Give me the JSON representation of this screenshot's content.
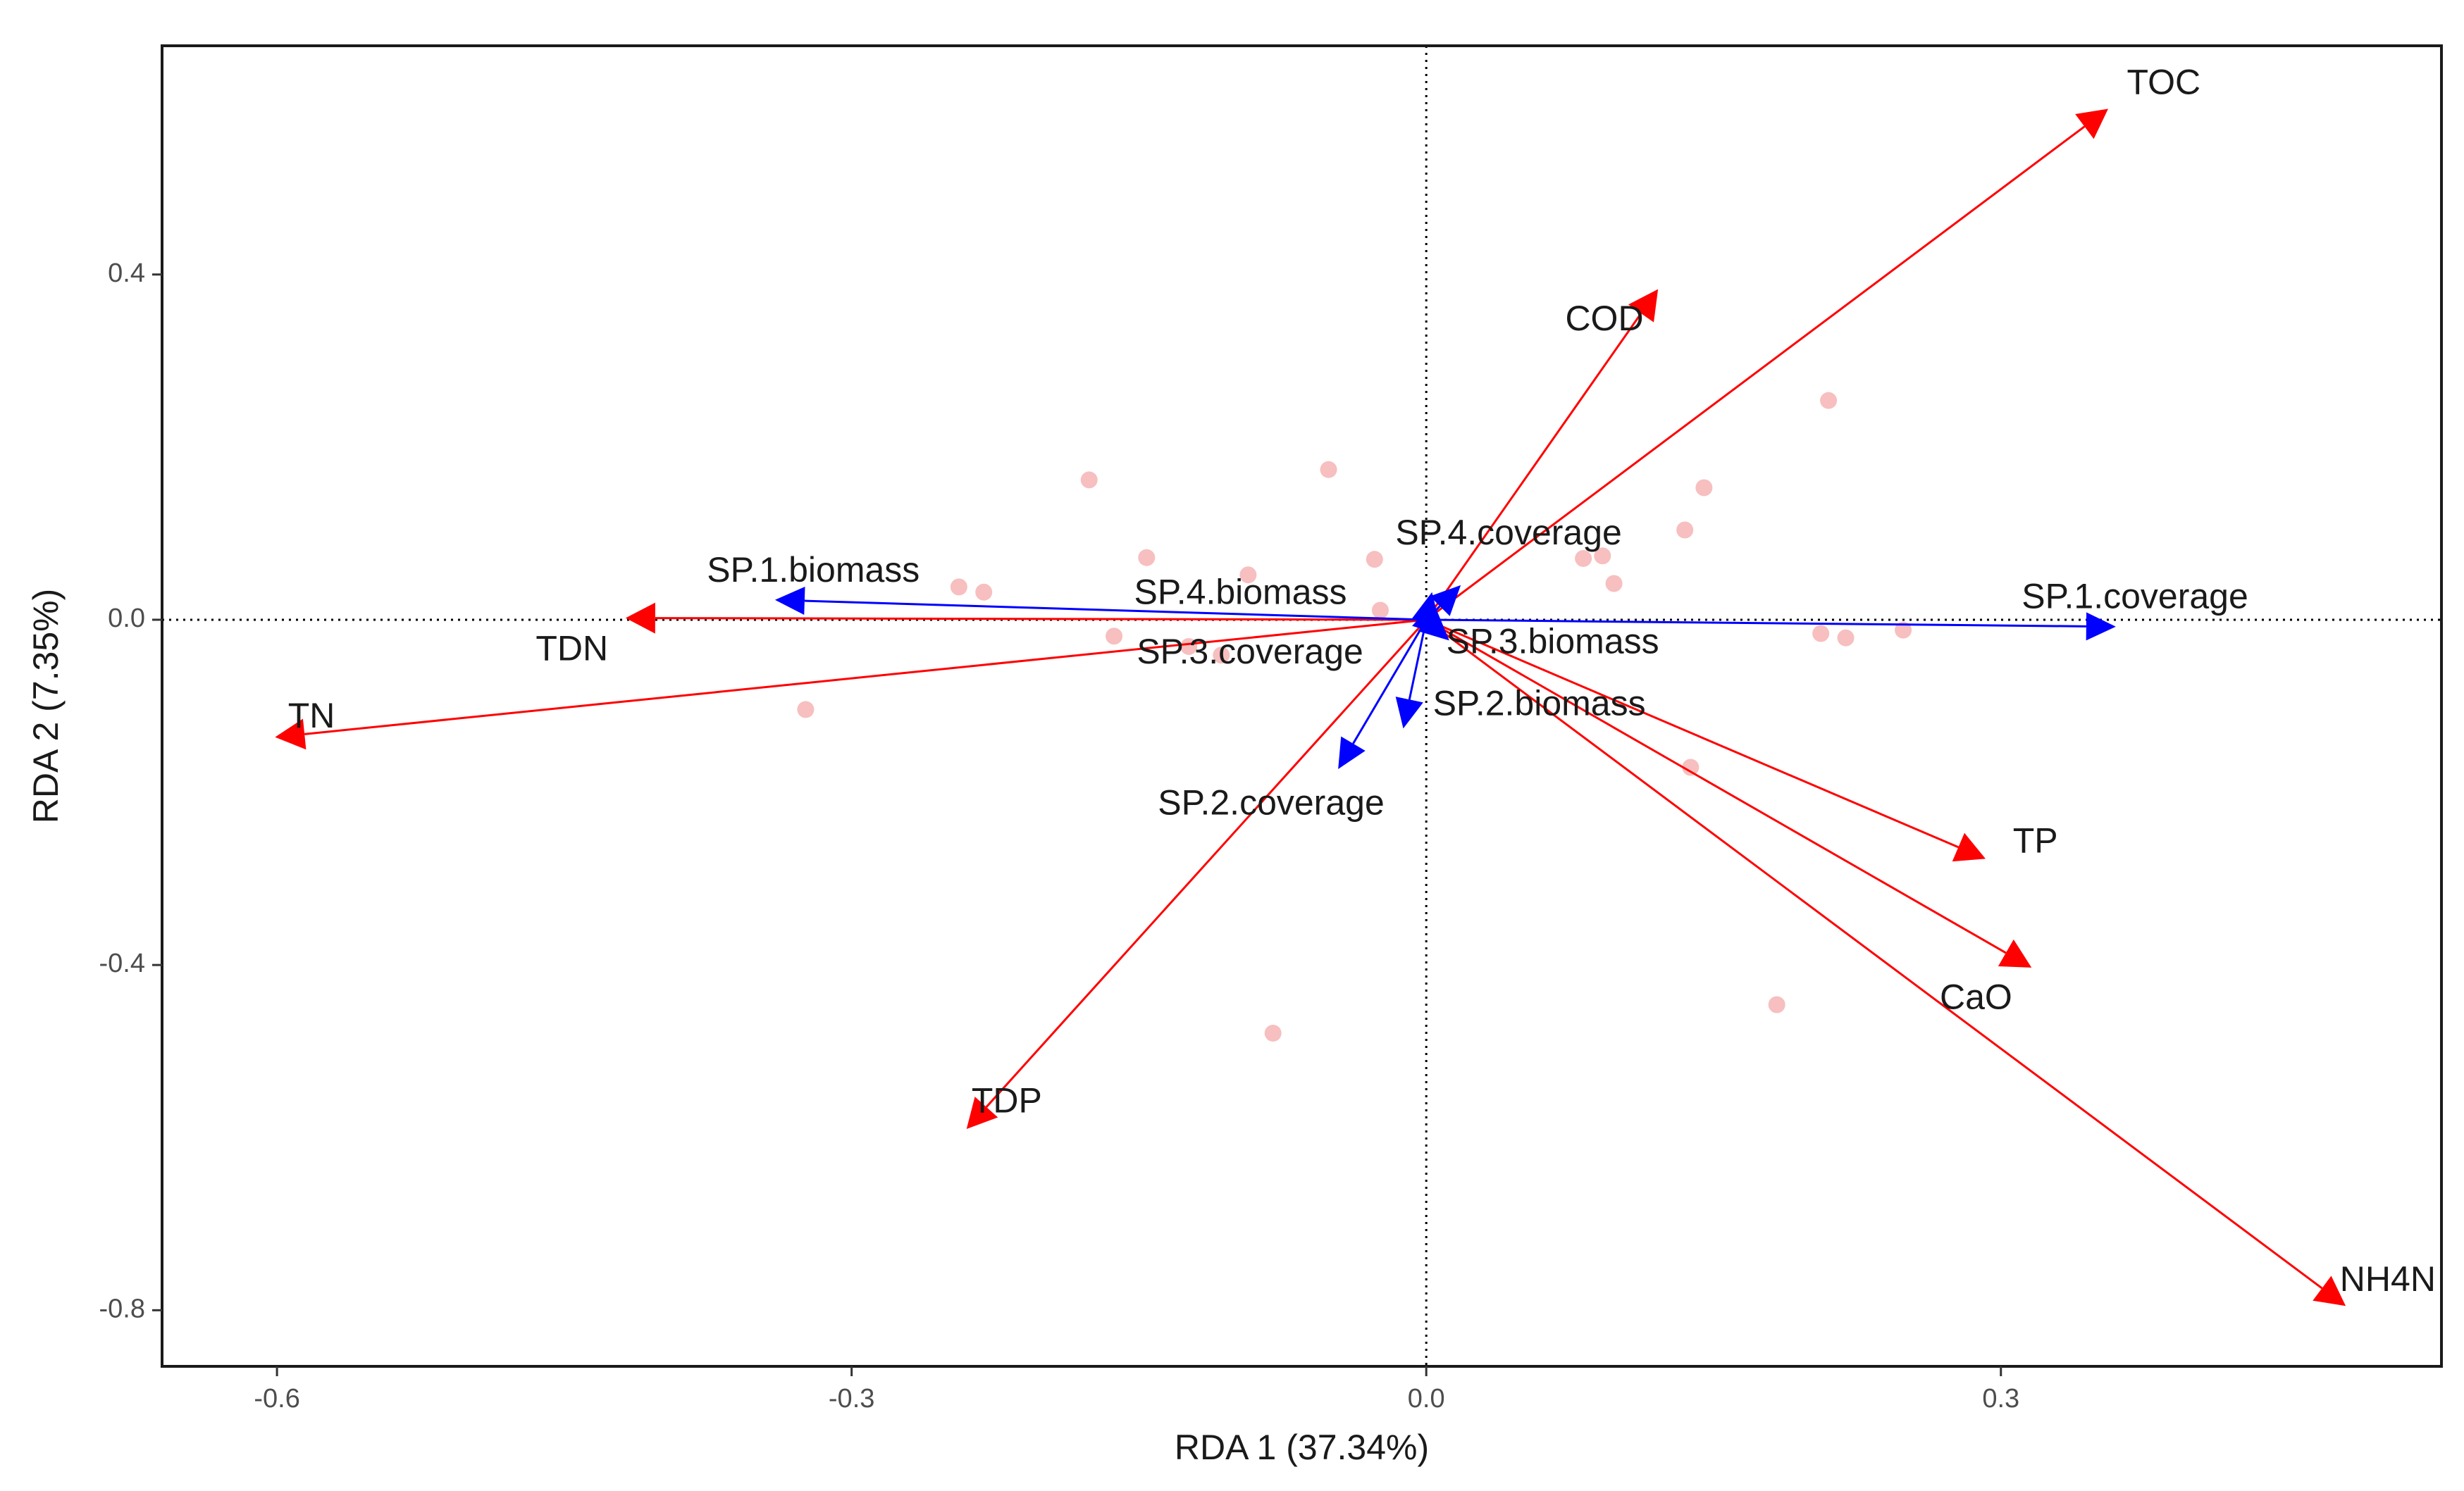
{
  "chart_data": {
    "type": "scatter",
    "subtype": "rda-biplot",
    "title": "",
    "xlabel": "RDA 1 (37.34%)",
    "ylabel": "RDA 2 (7.35%)",
    "xlim": [
      -0.66,
      0.53
    ],
    "ylim": [
      -0.865,
      0.665
    ],
    "x_ticks": [
      -0.6,
      -0.3,
      0.0,
      0.3
    ],
    "x_tick_labels": [
      "-0.6",
      "-0.3",
      "0.0",
      "0.3"
    ],
    "y_ticks": [
      -0.8,
      -0.4,
      0.0,
      0.4
    ],
    "y_tick_labels": [
      "-0.8",
      "-0.4",
      "0.0",
      "0.4"
    ],
    "grid": false,
    "reference_lines": {
      "x": 0,
      "y": 0,
      "style": "dotted"
    },
    "colors": {
      "environment": "#ff0000",
      "species": "#0000ff",
      "sites": "#f4a9a9",
      "axis": "#000000"
    },
    "sites": [
      {
        "x": -0.176,
        "y": 0.162
      },
      {
        "x": -0.051,
        "y": 0.174
      },
      {
        "x": -0.146,
        "y": 0.072
      },
      {
        "x": -0.093,
        "y": 0.052
      },
      {
        "x": -0.027,
        "y": 0.07
      },
      {
        "x": -0.244,
        "y": 0.038
      },
      {
        "x": -0.231,
        "y": 0.032
      },
      {
        "x": -0.163,
        "y": -0.019
      },
      {
        "x": -0.124,
        "y": -0.031
      },
      {
        "x": -0.107,
        "y": -0.041
      },
      {
        "x": -0.024,
        "y": 0.011
      },
      {
        "x": -0.324,
        "y": -0.104
      },
      {
        "x": 0.082,
        "y": 0.071
      },
      {
        "x": 0.092,
        "y": 0.074
      },
      {
        "x": 0.098,
        "y": 0.042
      },
      {
        "x": 0.135,
        "y": 0.104
      },
      {
        "x": 0.145,
        "y": 0.153
      },
      {
        "x": 0.21,
        "y": 0.254
      },
      {
        "x": 0.206,
        "y": -0.016
      },
      {
        "x": 0.219,
        "y": -0.021
      },
      {
        "x": 0.249,
        "y": -0.012
      },
      {
        "x": 0.138,
        "y": -0.171
      },
      {
        "x": 0.183,
        "y": -0.446
      },
      {
        "x": -0.08,
        "y": -0.479
      }
    ],
    "env_vectors": [
      {
        "name": "TOC",
        "x": 0.356,
        "y": 0.592
      },
      {
        "name": "COD",
        "x": 0.121,
        "y": 0.383
      },
      {
        "name": "TDN",
        "x": -0.418,
        "y": 0.002
      },
      {
        "name": "TN",
        "x": -0.601,
        "y": -0.136
      },
      {
        "name": "TP",
        "x": 0.292,
        "y": -0.277
      },
      {
        "name": "CaO",
        "x": 0.316,
        "y": -0.403
      },
      {
        "name": "NH4N",
        "x": 0.48,
        "y": -0.795
      },
      {
        "name": "TDP",
        "x": -0.24,
        "y": -0.59
      }
    ],
    "species_vectors": [
      {
        "name": "SP.1.coverage",
        "x": 0.36,
        "y": -0.008
      },
      {
        "name": "SP.1.biomass",
        "x": -0.34,
        "y": 0.023
      },
      {
        "name": "SP.4.biomass",
        "x": 0.003,
        "y": 0.032
      },
      {
        "name": "SP.4.coverage",
        "x": 0.018,
        "y": 0.04
      },
      {
        "name": "SP.3.coverage",
        "x": 0.009,
        "y": -0.018
      },
      {
        "name": "SP.3.biomass",
        "x": 0.012,
        "y": -0.024
      },
      {
        "name": "SP.2.biomass",
        "x": -0.012,
        "y": -0.126
      },
      {
        "name": "SP.2.coverage",
        "x": -0.046,
        "y": -0.173
      }
    ],
    "labels": [
      {
        "text": "TOC",
        "group": "env",
        "x": 0.385,
        "y": 0.62
      },
      {
        "text": "COD",
        "group": "env",
        "x": 0.093,
        "y": 0.346
      },
      {
        "text": "TDN",
        "group": "env",
        "x": -0.446,
        "y": -0.036
      },
      {
        "text": "TN",
        "group": "env",
        "x": -0.582,
        "y": -0.114
      },
      {
        "text": "TP",
        "group": "env",
        "x": 0.318,
        "y": -0.259
      },
      {
        "text": "CaO",
        "group": "env",
        "x": 0.287,
        "y": -0.44
      },
      {
        "text": "NH4N",
        "group": "env",
        "x": 0.502,
        "y": -0.767
      },
      {
        "text": "TDP",
        "group": "env",
        "x": -0.219,
        "y": -0.56
      },
      {
        "text": "SP.1.coverage",
        "group": "species",
        "x": 0.37,
        "y": 0.024
      },
      {
        "text": "SP.1.biomass",
        "group": "species",
        "x": -0.32,
        "y": 0.055
      },
      {
        "text": "SP.4.biomass",
        "group": "species",
        "x": -0.097,
        "y": 0.029
      },
      {
        "text": "SP.4.coverage",
        "group": "species",
        "x": 0.043,
        "y": 0.098
      },
      {
        "text": "SP.3.coverage",
        "group": "species",
        "x": -0.092,
        "y": -0.04
      },
      {
        "text": "SP.3.biomass",
        "group": "species",
        "x": 0.066,
        "y": -0.028
      },
      {
        "text": "SP.2.biomass",
        "group": "species",
        "x": 0.059,
        "y": -0.1
      },
      {
        "text": "SP.2.coverage",
        "group": "species",
        "x": -0.081,
        "y": -0.215
      }
    ]
  }
}
